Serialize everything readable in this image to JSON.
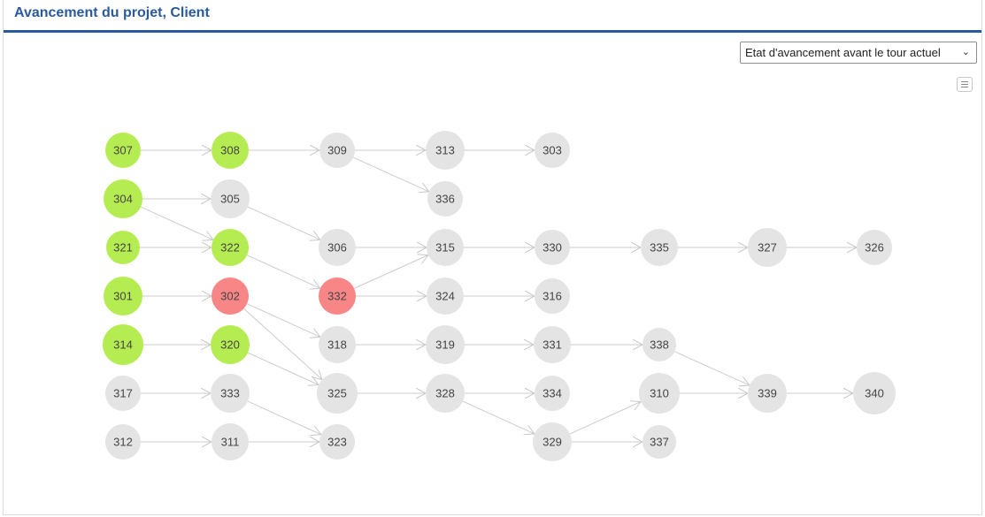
{
  "header": {
    "title": "Avancement du projet, Client"
  },
  "controls": {
    "view_select": {
      "selected": "Etat d'avancement avant le tour actuel"
    },
    "menu_icon": "hamburger-menu-icon"
  },
  "colors": {
    "done": "#b5ec51",
    "late": "#f98686",
    "pending": "#e4e4e4",
    "title": "#2a5a9c",
    "edge": "#cccccc"
  },
  "graph": {
    "nodes": [
      {
        "id": "307",
        "status": "done"
      },
      {
        "id": "308",
        "status": "done"
      },
      {
        "id": "309",
        "status": "pending"
      },
      {
        "id": "313",
        "status": "pending"
      },
      {
        "id": "303",
        "status": "pending"
      },
      {
        "id": "304",
        "status": "done"
      },
      {
        "id": "305",
        "status": "pending"
      },
      {
        "id": "336",
        "status": "pending"
      },
      {
        "id": "321",
        "status": "done"
      },
      {
        "id": "322",
        "status": "done"
      },
      {
        "id": "306",
        "status": "pending"
      },
      {
        "id": "315",
        "status": "pending"
      },
      {
        "id": "330",
        "status": "pending"
      },
      {
        "id": "335",
        "status": "pending"
      },
      {
        "id": "327",
        "status": "pending"
      },
      {
        "id": "326",
        "status": "pending"
      },
      {
        "id": "301",
        "status": "done"
      },
      {
        "id": "302",
        "status": "late"
      },
      {
        "id": "332",
        "status": "late"
      },
      {
        "id": "324",
        "status": "pending"
      },
      {
        "id": "316",
        "status": "pending"
      },
      {
        "id": "314",
        "status": "done"
      },
      {
        "id": "320",
        "status": "done"
      },
      {
        "id": "318",
        "status": "pending"
      },
      {
        "id": "319",
        "status": "pending"
      },
      {
        "id": "331",
        "status": "pending"
      },
      {
        "id": "338",
        "status": "pending"
      },
      {
        "id": "317",
        "status": "pending"
      },
      {
        "id": "333",
        "status": "pending"
      },
      {
        "id": "325",
        "status": "pending"
      },
      {
        "id": "328",
        "status": "pending"
      },
      {
        "id": "334",
        "status": "pending"
      },
      {
        "id": "310",
        "status": "pending"
      },
      {
        "id": "339",
        "status": "pending"
      },
      {
        "id": "340",
        "status": "pending"
      },
      {
        "id": "312",
        "status": "pending"
      },
      {
        "id": "311",
        "status": "pending"
      },
      {
        "id": "323",
        "status": "pending"
      },
      {
        "id": "329",
        "status": "pending"
      },
      {
        "id": "337",
        "status": "pending"
      }
    ],
    "edges": [
      [
        "307",
        "308"
      ],
      [
        "308",
        "309"
      ],
      [
        "309",
        "313"
      ],
      [
        "309",
        "336"
      ],
      [
        "313",
        "303"
      ],
      [
        "304",
        "305"
      ],
      [
        "304",
        "322"
      ],
      [
        "305",
        "306"
      ],
      [
        "321",
        "322"
      ],
      [
        "322",
        "332"
      ],
      [
        "306",
        "315"
      ],
      [
        "332",
        "315"
      ],
      [
        "315",
        "330"
      ],
      [
        "330",
        "335"
      ],
      [
        "335",
        "327"
      ],
      [
        "327",
        "326"
      ],
      [
        "301",
        "302"
      ],
      [
        "302",
        "318"
      ],
      [
        "302",
        "325"
      ],
      [
        "332",
        "324"
      ],
      [
        "324",
        "316"
      ],
      [
        "314",
        "320"
      ],
      [
        "320",
        "325"
      ],
      [
        "318",
        "319"
      ],
      [
        "319",
        "331"
      ],
      [
        "331",
        "338"
      ],
      [
        "338",
        "339"
      ],
      [
        "317",
        "333"
      ],
      [
        "333",
        "323"
      ],
      [
        "325",
        "328"
      ],
      [
        "328",
        "334"
      ],
      [
        "328",
        "329"
      ],
      [
        "329",
        "310"
      ],
      [
        "310",
        "339"
      ],
      [
        "339",
        "340"
      ],
      [
        "312",
        "311"
      ],
      [
        "311",
        "323"
      ],
      [
        "329",
        "337"
      ]
    ]
  }
}
